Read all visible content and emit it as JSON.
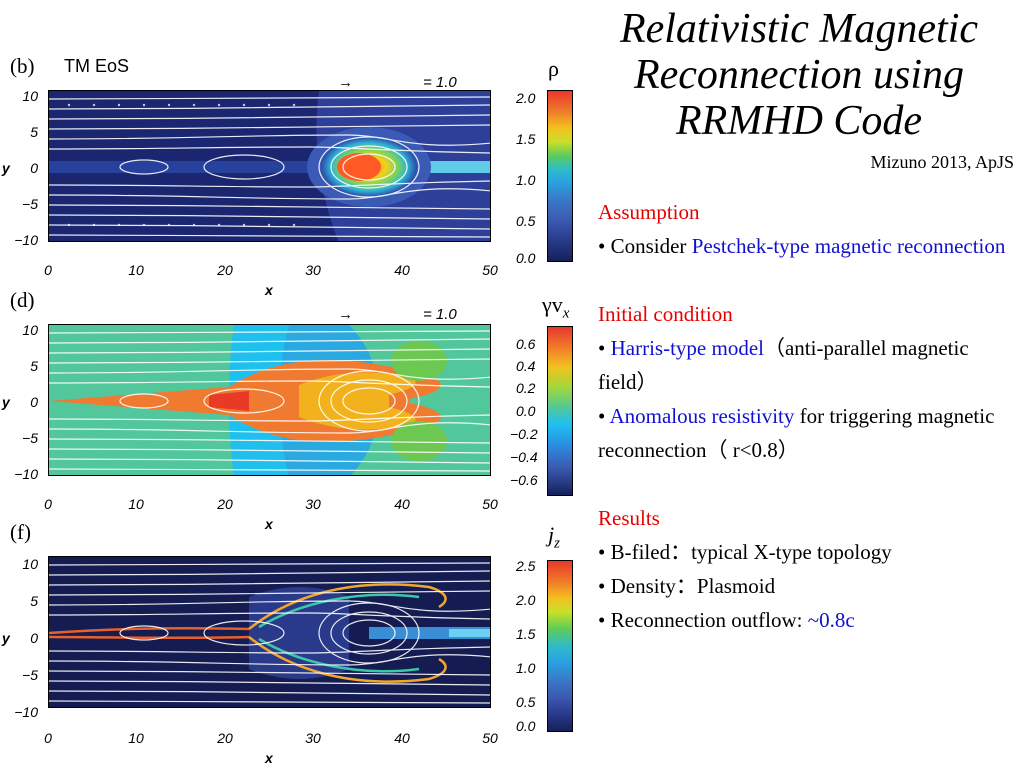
{
  "title_lines": [
    "Relativistic Magnetic",
    "Reconnection using",
    "RRMHD Code"
  ],
  "citation": "Mizuno 2013, ApJS",
  "sections": {
    "assumption": {
      "heading": "Assumption",
      "bullet": "• Consider ",
      "link": "Pestchek-type magnetic reconnection"
    },
    "initial": {
      "heading": "Initial condition",
      "b1_prefix": "• ",
      "b1_link": "Harris-type model",
      "b1_rest": "（anti-parallel magnetic field）",
      "b2_prefix": "• ",
      "b2_link": "Anomalous resistivity",
      "b2_rest": " for triggering magnetic reconnection（ r<0.8）"
    },
    "results": {
      "heading": "Results",
      "r1": "• B-filed：typical X-type topology",
      "r2": "• Density：Plasmoid",
      "r3_prefix": "• Reconnection outflow: ",
      "r3_link": "~0.8c"
    }
  },
  "panels": [
    {
      "label": "(b)",
      "eos": "TM EoS",
      "arrow_text": "= 1.0",
      "cbar_title": "ρ",
      "cbar_ticks": [
        "2.0",
        "1.5",
        "1.0",
        "0.5",
        "0.0"
      ]
    },
    {
      "label": "(d)",
      "eos": "",
      "arrow_text": "= 1.0",
      "cbar_title": "γv",
      "cbar_title_sub": "x",
      "cbar_ticks": [
        "0.6",
        "0.4",
        "0.2",
        "0.0",
        "−0.2",
        "−0.4",
        "−0.6"
      ]
    },
    {
      "label": "(f)",
      "eos": "",
      "arrow_text": "",
      "cbar_title": "j",
      "cbar_title_sub": "z",
      "cbar_ticks": [
        "2.5",
        "2.0",
        "1.5",
        "1.0",
        "0.5",
        "0.0"
      ]
    }
  ],
  "y_ticks": [
    "10",
    "5",
    "0",
    "−5",
    "−10"
  ],
  "x_ticks": [
    "0",
    "10",
    "20",
    "30",
    "40",
    "50"
  ],
  "x_label": "x",
  "y_label": "y"
}
